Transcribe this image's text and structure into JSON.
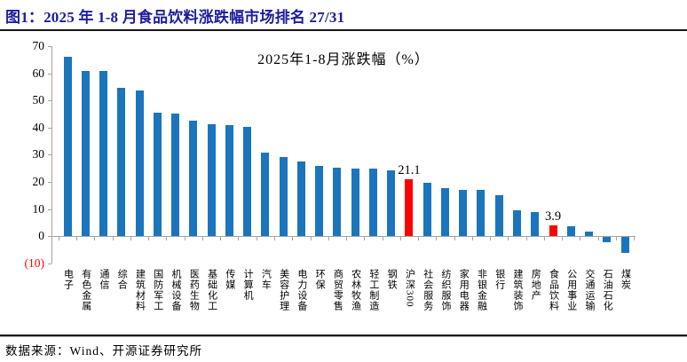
{
  "figure": {
    "title": "图1：2025 年 1-8 月食品饮料涨跌幅市场排名 27/31"
  },
  "source": {
    "text": "数据来源：Wind、开源证券研究所"
  },
  "colors": {
    "figure_title": "#1d1d9e",
    "bar_blue": "#1b75bc",
    "bar_red": "#ff0000",
    "axis_gray": "#a3a3a3",
    "negative_tick_red": "#ff0000",
    "text_black": "#000000"
  },
  "chart_data": {
    "type": "bar",
    "title": "2025年1-8月涨跌幅（%）",
    "xlabel": "",
    "ylabel": "",
    "ylim": [
      -10,
      70
    ],
    "grid": false,
    "legend": "none",
    "y_ticks": [
      {
        "value": 70,
        "label": "70",
        "color": "#000000"
      },
      {
        "value": 60,
        "label": "60",
        "color": "#000000"
      },
      {
        "value": 50,
        "label": "50",
        "color": "#000000"
      },
      {
        "value": 40,
        "label": "40",
        "color": "#000000"
      },
      {
        "value": 30,
        "label": "30",
        "color": "#000000"
      },
      {
        "value": 20,
        "label": "20",
        "color": "#000000"
      },
      {
        "value": 10,
        "label": "10",
        "color": "#000000"
      },
      {
        "value": 0,
        "label": "0",
        "color": "#000000"
      },
      {
        "value": -10,
        "label": "(10)",
        "color": "#ff0000"
      }
    ],
    "categories": [
      "电子",
      "有色金属",
      "通信",
      "综合",
      "建筑材料",
      "国防军工",
      "机械设备",
      "医药生物",
      "基础化工",
      "传媒",
      "计算机",
      "汽车",
      "美容护理",
      "电力设备",
      "环保",
      "商贸零售",
      "农林牧渔",
      "轻工制造",
      "钢铁",
      "沪深300",
      "社会服务",
      "纺织服饰",
      "家用电器",
      "非银金融",
      "银行",
      "建筑装饰",
      "房地产",
      "食品饮料",
      "公用事业",
      "交通运输",
      "石油石化",
      "煤炭"
    ],
    "values": [
      66.0,
      61.0,
      60.7,
      54.8,
      53.5,
      45.4,
      45.2,
      42.6,
      41.2,
      41.0,
      40.1,
      30.9,
      29.0,
      27.6,
      26.0,
      25.2,
      25.0,
      24.8,
      24.4,
      21.1,
      19.8,
      17.6,
      17.1,
      16.9,
      15.1,
      9.7,
      8.8,
      3.9,
      3.7,
      1.7,
      -1.9,
      -5.8
    ],
    "highlight_indices": [
      19,
      27
    ],
    "annotations": [
      {
        "index": 19,
        "text": "21.1"
      },
      {
        "index": 27,
        "text": "3.9"
      }
    ]
  }
}
